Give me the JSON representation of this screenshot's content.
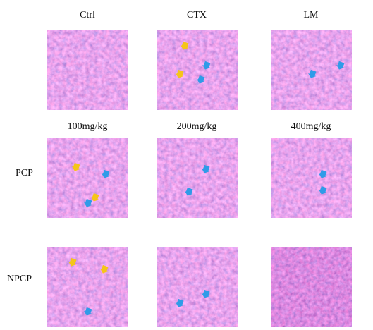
{
  "columns": [
    "Ctrl",
    "CTX",
    "LM"
  ],
  "doses": [
    "100mg/kg",
    "200mg/kg",
    "400mg/kg"
  ],
  "rows": [
    "PCP",
    "NPCP"
  ]
}
